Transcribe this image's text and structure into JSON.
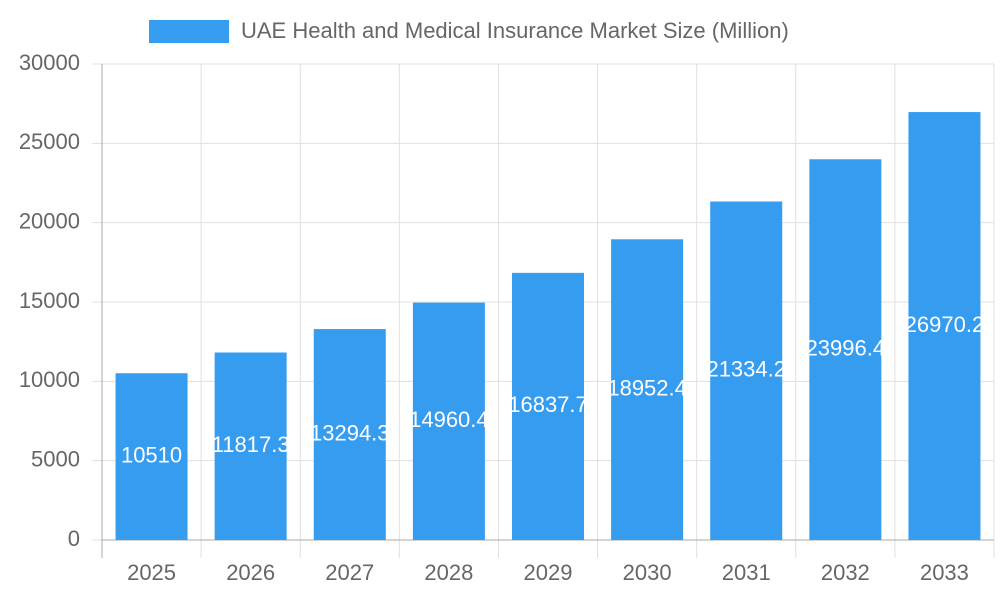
{
  "chart_data": {
    "type": "bar",
    "legend": "UAE Health and Medical Insurance Market Size (Million)",
    "categories": [
      "2025",
      "2026",
      "2027",
      "2028",
      "2029",
      "2030",
      "2031",
      "2032",
      "2033"
    ],
    "values": [
      10510,
      11817.3,
      13294.3,
      14960.4,
      16837.7,
      18952.4,
      21334.2,
      23996.4,
      26970.2
    ],
    "color": "#369cf0",
    "ylim": [
      0,
      30000
    ],
    "yticks": [
      0,
      5000,
      10000,
      15000,
      20000,
      25000,
      30000
    ],
    "grid": true
  }
}
